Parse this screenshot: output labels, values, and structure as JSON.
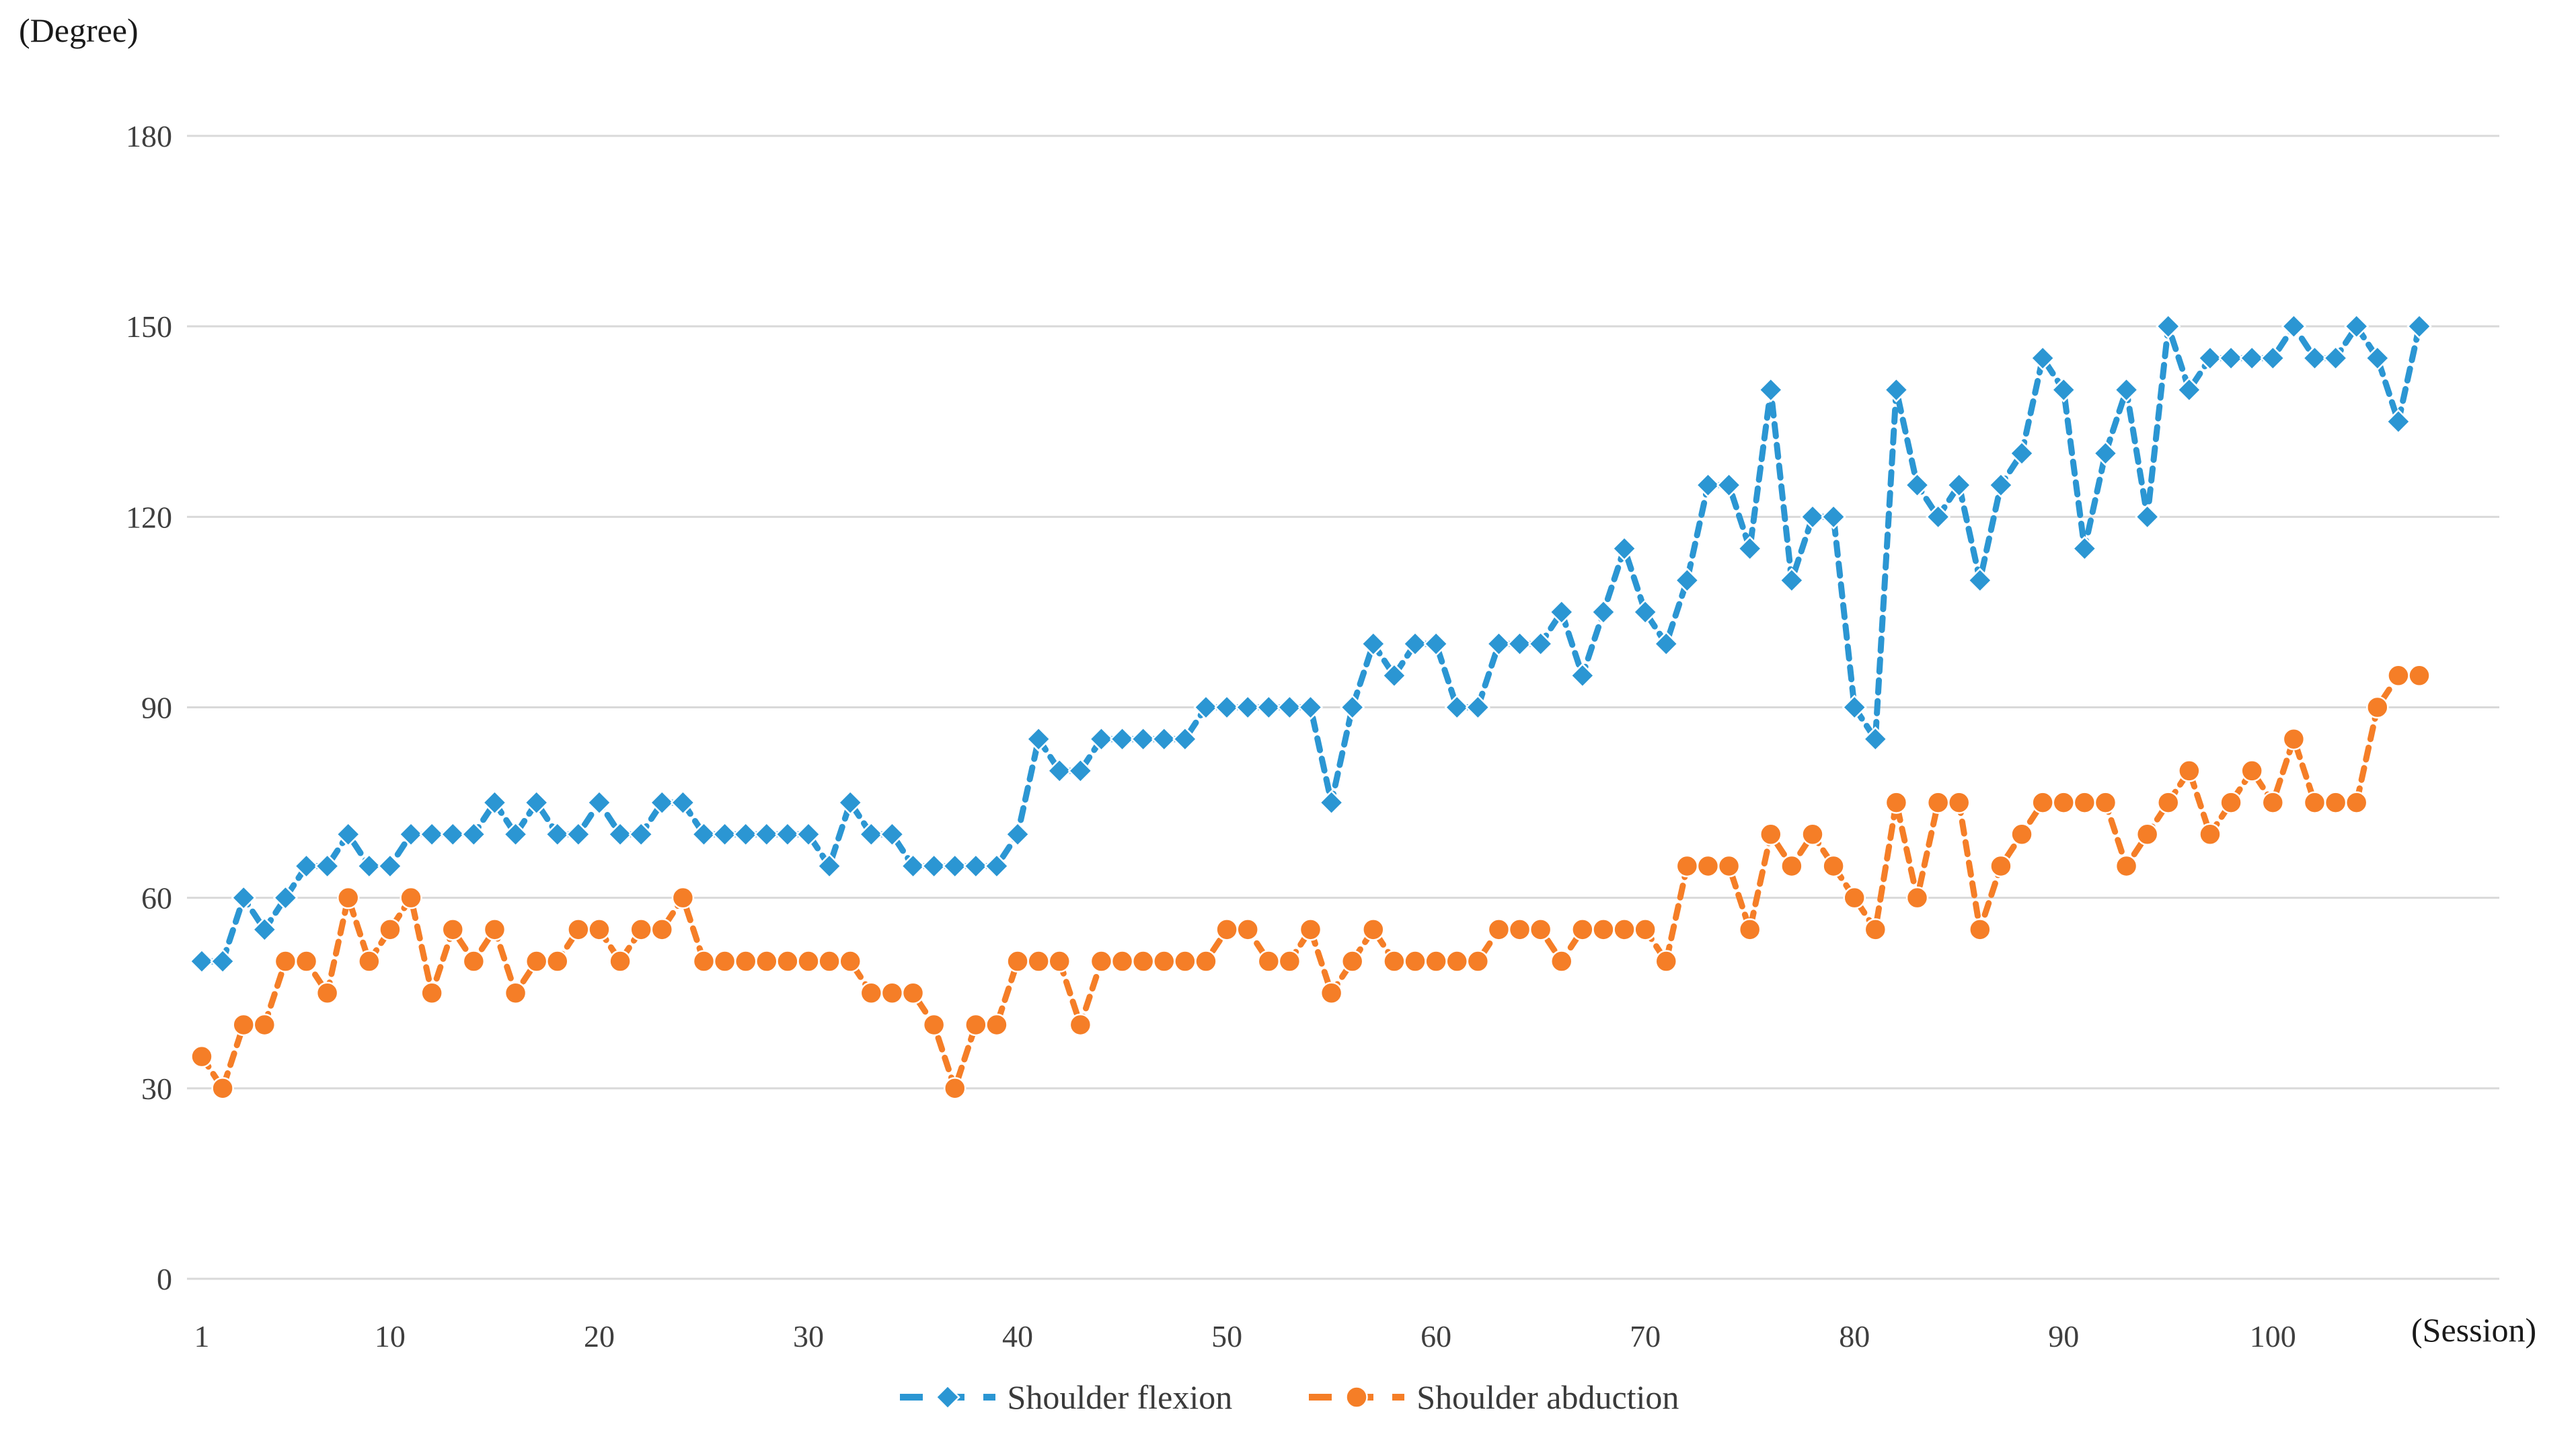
{
  "labels": {
    "y_unit": "(Degree)",
    "x_unit": "(Session)"
  },
  "colors": {
    "flexion": "#2B96D3",
    "abduction": "#F57E27",
    "gridline": "#D9D9D9",
    "tick_text": "#3F3F3F"
  },
  "chart_data": {
    "type": "line",
    "title": "",
    "xlabel": "(Session)",
    "ylabel": "(Degree)",
    "ylim": [
      0,
      180
    ],
    "y_ticks": [
      0,
      30,
      60,
      90,
      120,
      150,
      180
    ],
    "x_ticks": [
      1,
      10,
      20,
      30,
      40,
      50,
      60,
      70,
      80,
      90,
      100
    ],
    "grid": "horizontal",
    "legend_position": "bottom-center",
    "x_start": 1,
    "n_points": 107,
    "series": [
      {
        "name": "Shoulder flexion",
        "color": "#2B96D3",
        "marker": "diamond",
        "line_style": "dashed",
        "values": [
          50,
          50,
          60,
          55,
          60,
          65,
          65,
          70,
          65,
          65,
          70,
          70,
          70,
          70,
          75,
          70,
          75,
          70,
          70,
          75,
          70,
          70,
          75,
          75,
          70,
          70,
          70,
          70,
          70,
          70,
          65,
          75,
          70,
          70,
          65,
          65,
          65,
          65,
          65,
          70,
          85,
          80,
          80,
          85,
          85,
          85,
          85,
          85,
          90,
          90,
          90,
          90,
          90,
          90,
          75,
          90,
          100,
          95,
          100,
          100,
          90,
          90,
          100,
          100,
          100,
          105,
          95,
          105,
          115,
          105,
          100,
          110,
          125,
          125,
          115,
          140,
          110,
          120,
          120,
          90,
          85,
          140,
          125,
          120,
          125,
          110,
          125,
          130,
          145,
          140,
          115,
          130,
          140,
          120,
          150,
          140,
          145,
          145,
          145,
          145,
          150,
          145,
          145,
          150,
          145,
          135,
          150
        ]
      },
      {
        "name": "Shoulder abduction",
        "color": "#F57E27",
        "marker": "circle",
        "line_style": "dashed",
        "values": [
          35,
          30,
          40,
          40,
          50,
          50,
          45,
          60,
          50,
          55,
          60,
          45,
          55,
          50,
          55,
          45,
          50,
          50,
          55,
          55,
          50,
          55,
          55,
          60,
          50,
          50,
          50,
          50,
          50,
          50,
          50,
          50,
          45,
          45,
          45,
          40,
          30,
          40,
          40,
          50,
          50,
          50,
          40,
          50,
          50,
          50,
          50,
          50,
          50,
          55,
          55,
          50,
          50,
          55,
          45,
          50,
          55,
          50,
          50,
          50,
          50,
          50,
          55,
          55,
          55,
          50,
          55,
          55,
          55,
          55,
          50,
          65,
          65,
          65,
          55,
          70,
          65,
          70,
          65,
          60,
          55,
          75,
          60,
          75,
          75,
          55,
          65,
          70,
          75,
          75,
          75,
          75,
          65,
          70,
          75,
          80,
          70,
          75,
          80,
          75,
          85,
          75,
          75,
          75,
          90,
          95,
          95
        ]
      }
    ]
  }
}
